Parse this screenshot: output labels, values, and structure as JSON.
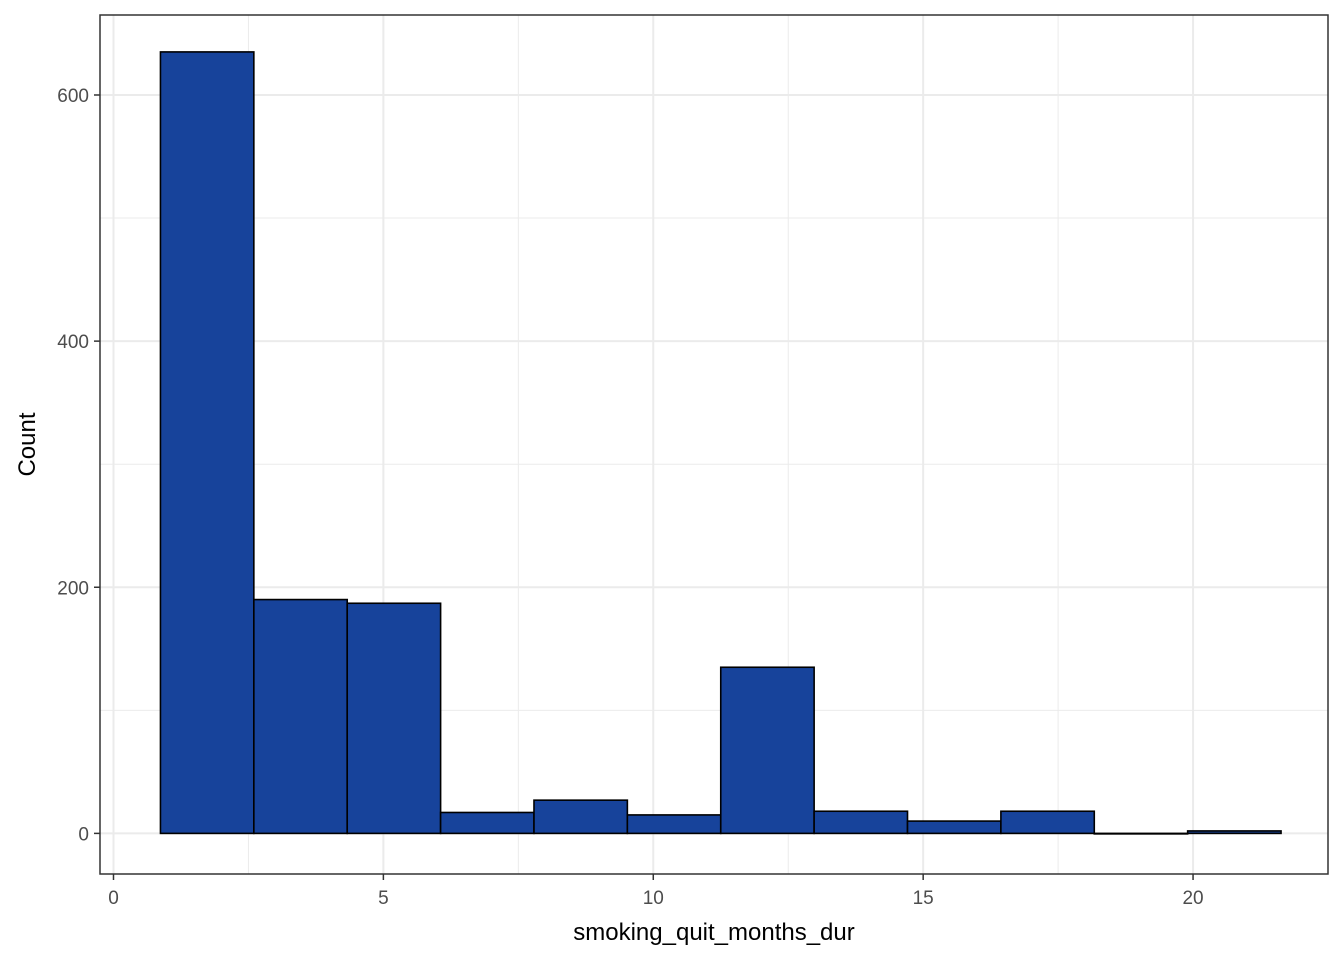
{
  "chart_data": {
    "type": "bar",
    "subtype": "histogram",
    "title": "",
    "xlabel": "smoking_quit_months_dur",
    "ylabel": "Count",
    "xlim": [
      -0.25,
      22.5
    ],
    "ylim": [
      -33,
      665
    ],
    "x_ticks": [
      0,
      5,
      10,
      15,
      20
    ],
    "y_ticks": [
      0,
      200,
      400,
      600
    ],
    "x_minor_ticks": [
      2.5,
      7.5,
      12.5,
      17.5
    ],
    "y_minor_ticks": [
      100,
      300,
      500
    ],
    "grid": true,
    "legend": "none",
    "bins": [
      {
        "x0": 0.87,
        "x1": 2.6,
        "count": 635
      },
      {
        "x0": 2.6,
        "x1": 4.33,
        "count": 190
      },
      {
        "x0": 4.33,
        "x1": 6.06,
        "count": 187
      },
      {
        "x0": 6.06,
        "x1": 7.79,
        "count": 17
      },
      {
        "x0": 7.79,
        "x1": 9.52,
        "count": 27
      },
      {
        "x0": 9.52,
        "x1": 11.25,
        "count": 15
      },
      {
        "x0": 11.25,
        "x1": 12.98,
        "count": 135
      },
      {
        "x0": 12.98,
        "x1": 14.71,
        "count": 18
      },
      {
        "x0": 14.71,
        "x1": 16.44,
        "count": 10
      },
      {
        "x0": 16.44,
        "x1": 18.17,
        "count": 18
      },
      {
        "x0": 18.17,
        "x1": 19.9,
        "count": 0
      },
      {
        "x0": 19.9,
        "x1": 21.63,
        "count": 2
      }
    ],
    "colors": {
      "bar_fill": "#17439B",
      "bar_stroke": "#000000",
      "grid": "#EBEBEB",
      "panel_border": "#333333",
      "tick_text": "#4D4D4D",
      "title_text": "#000000"
    }
  }
}
